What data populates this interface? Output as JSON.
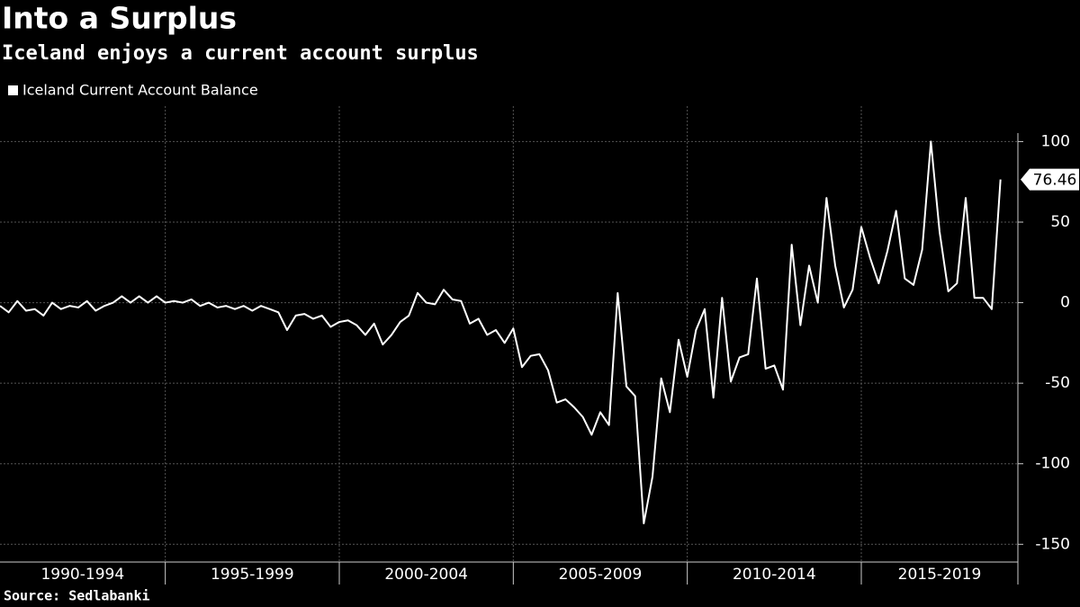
{
  "chart_data": {
    "type": "line",
    "title": "Into a Surplus",
    "subtitle": "Iceland enjoys a current account surplus",
    "source": "Source: Sedlabanki",
    "legend": "top-left",
    "grid": true,
    "series": [
      {
        "name": "Iceland Current Account Balance",
        "color": "#ffffff",
        "x": [
          1990.25,
          1990.5,
          1990.75,
          1991,
          1991.25,
          1991.5,
          1991.75,
          1992,
          1992.25,
          1992.5,
          1992.75,
          1993,
          1993.25,
          1993.5,
          1993.75,
          1994,
          1994.25,
          1994.5,
          1994.75,
          1995,
          1995.25,
          1995.5,
          1995.75,
          1996,
          1996.25,
          1996.5,
          1996.75,
          1997,
          1997.25,
          1997.5,
          1997.75,
          1998,
          1998.25,
          1998.5,
          1998.75,
          1999,
          1999.25,
          1999.5,
          1999.75,
          2000,
          2000.25,
          2000.5,
          2000.75,
          2001,
          2001.25,
          2001.5,
          2001.75,
          2002,
          2002.25,
          2002.5,
          2002.75,
          2003,
          2003.25,
          2003.5,
          2003.75,
          2004,
          2004.25,
          2004.5,
          2004.75,
          2005,
          2005.25,
          2005.5,
          2005.75,
          2006,
          2006.25,
          2006.5,
          2006.75,
          2007,
          2007.25,
          2007.5,
          2007.75,
          2008,
          2008.25,
          2008.5,
          2008.75,
          2009,
          2009.25,
          2009.5,
          2009.75,
          2010,
          2010.25,
          2010.5,
          2010.75,
          2011,
          2011.25,
          2011.5,
          2011.75,
          2012,
          2012.25,
          2012.5,
          2012.75,
          2013,
          2013.25,
          2013.5,
          2013.75,
          2014,
          2014.25,
          2014.5,
          2014.75,
          2015,
          2015.25,
          2015.5,
          2015.75,
          2016,
          2016.25,
          2016.5,
          2016.75,
          2017,
          2017.25,
          2017.5,
          2017.75,
          2018,
          2018.25,
          2018.5,
          2018.75,
          2019
        ],
        "values": [
          -2,
          -6,
          1,
          -5,
          -4,
          -8,
          0,
          -4,
          -2,
          -3,
          1,
          -5,
          -2,
          0,
          4,
          0,
          4,
          0,
          4,
          0,
          1,
          0,
          2,
          -2,
          0,
          -3,
          -2,
          -4,
          -2,
          -5,
          -2,
          -4,
          -6,
          -17,
          -8,
          -7,
          -10,
          -8,
          -15,
          -12,
          -11,
          -14,
          -20,
          -13,
          -26,
          -20,
          -12,
          -8,
          6,
          0,
          -1,
          8,
          2,
          1,
          -13,
          -10,
          -20,
          -17,
          -25,
          -16,
          -40,
          -33,
          -32,
          -42,
          -62,
          -60,
          -65,
          -71,
          -82,
          -68,
          -76,
          6,
          -52,
          -58,
          -137,
          -108,
          -47,
          -68,
          -23,
          -46,
          -17,
          -4,
          -59,
          3,
          -49,
          -34,
          -32,
          15,
          -41,
          -39,
          -54,
          36,
          -14,
          23,
          0,
          65,
          23,
          -3,
          8,
          47,
          28,
          12,
          32,
          57,
          15,
          11,
          33,
          100,
          44,
          7,
          12,
          65,
          3,
          3,
          -4,
          76.46
        ]
      }
    ],
    "xbands": [
      {
        "label": "1990-1994",
        "start": 1990,
        "end": 1995
      },
      {
        "label": "1995-1999",
        "start": 1995,
        "end": 2000
      },
      {
        "label": "2000-2004",
        "start": 2000,
        "end": 2005
      },
      {
        "label": "2005-2009",
        "start": 2005,
        "end": 2010
      },
      {
        "label": "2010-2014",
        "start": 2010,
        "end": 2015
      },
      {
        "label": "2015-2019",
        "start": 2015,
        "end": 2020
      }
    ],
    "xlim": [
      1990.25,
      2019.5
    ],
    "ylim": [
      -161,
      122
    ],
    "yticks": [
      100,
      50,
      0,
      -50,
      -100,
      -150
    ]
  }
}
